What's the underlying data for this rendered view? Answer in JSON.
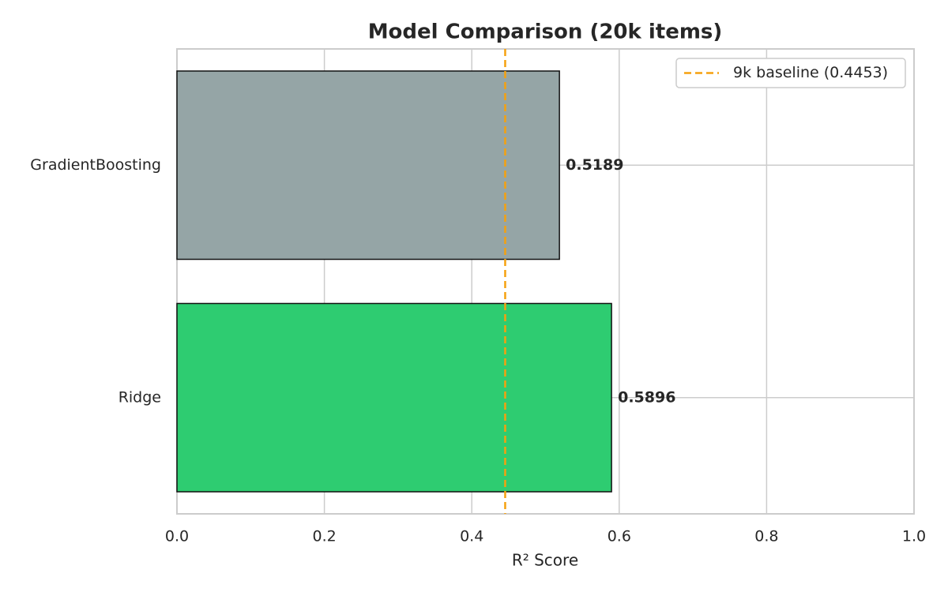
{
  "chart_data": {
    "type": "barh",
    "title": "Model Comparison (20k items)",
    "xlabel": "R² Score",
    "categories": [
      "GradientBoosting",
      "Ridge"
    ],
    "values": [
      0.5189,
      0.5896
    ],
    "colors": [
      "#95a5a6",
      "#2ecc71"
    ],
    "xlim": [
      0,
      1
    ],
    "xticks": [
      {
        "value": 0,
        "label": "0.0"
      },
      0.2,
      0.4,
      0.6,
      0.8,
      {
        "value": 1,
        "label": "1.0"
      }
    ],
    "grid": true,
    "reference_line": {
      "value": 0.4453,
      "label": "9k baseline (0.4453)",
      "color": "#f5a10f",
      "style": "dashed"
    },
    "legend": "upper right"
  }
}
